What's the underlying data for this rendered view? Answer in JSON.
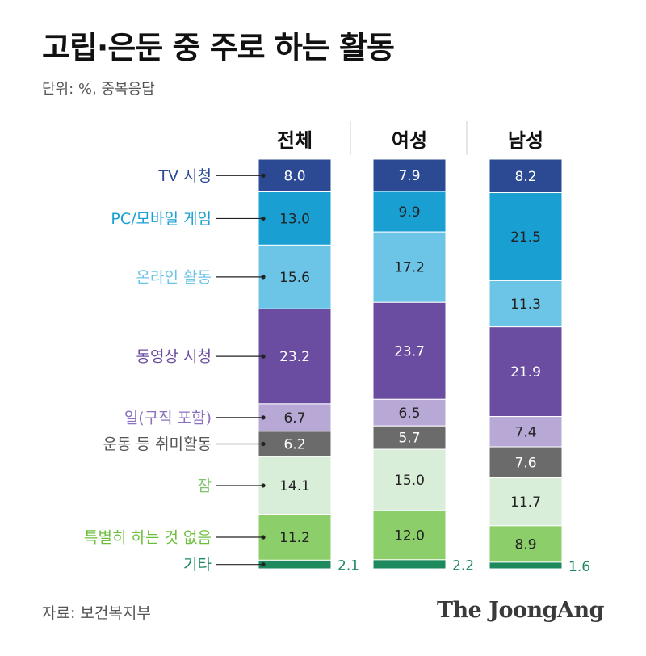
{
  "title": "고립·은둔 중 주로 하는 활동",
  "subtitle": "단위: %, 중복응답",
  "source": "자료: 보건복지부",
  "logo": "The JoongAng",
  "chart_data": {
    "type": "bar",
    "stacked": true,
    "orientation": "vertical",
    "title": "고립·은둔 중 주로 하는 활동",
    "subtitle": "단위: %, 중복응답",
    "categories": [
      "전체",
      "여성",
      "남성"
    ],
    "series": [
      {
        "name": "TV 시청",
        "color": "#2b4a93",
        "label_color": "#2b4a93",
        "values": [
          8.0,
          7.9,
          8.2
        ]
      },
      {
        "name": "PC/모바일 게임",
        "color": "#1a9fd3",
        "label_color": "#1a9fd3",
        "values": [
          13.0,
          9.9,
          21.5
        ]
      },
      {
        "name": "온라인 활동",
        "color": "#6cc4e6",
        "label_color": "#6cc4e6",
        "values": [
          15.6,
          17.2,
          11.3
        ]
      },
      {
        "name": "동영상 시청",
        "color": "#6a4ca0",
        "label_color": "#6a4ca0",
        "values": [
          23.2,
          23.7,
          21.9
        ]
      },
      {
        "name": "일(구직 포함)",
        "color": "#b7a8d6",
        "label_color": "#8a70bf",
        "values": [
          6.7,
          6.5,
          7.4
        ]
      },
      {
        "name": "운동 등 취미활동",
        "color": "#6b6b6b",
        "label_color": "#555555",
        "values": [
          6.2,
          5.7,
          7.6
        ]
      },
      {
        "name": "잠",
        "color": "#d9eed9",
        "label_color": "#7cc46a",
        "values": [
          14.1,
          15.0,
          11.7
        ]
      },
      {
        "name": "특별히 하는 것 없음",
        "color": "#8cce6a",
        "label_color": "#6cbf3c",
        "values": [
          11.2,
          12.0,
          8.9
        ]
      },
      {
        "name": "기타",
        "color": "#1d8a5e",
        "label_color": "#1d8a5e",
        "values": [
          2.1,
          2.2,
          1.6
        ]
      }
    ],
    "value_labels": [
      [
        "8.0",
        "13.0",
        "15.6",
        "23.2",
        "6.7",
        "6.2",
        "14.1",
        "11.2",
        "2.1"
      ],
      [
        "7.9",
        "9.9",
        "17.2",
        "23.7",
        "6.5",
        "5.7",
        "15.0",
        "12.0",
        "2.2"
      ],
      [
        "8.2",
        "21.5",
        "11.3",
        "21.9",
        "7.4",
        "7.6",
        "11.7",
        "8.9",
        "1.6"
      ]
    ],
    "legend_placement": "left, with leader lines to first bar",
    "grid": false
  }
}
